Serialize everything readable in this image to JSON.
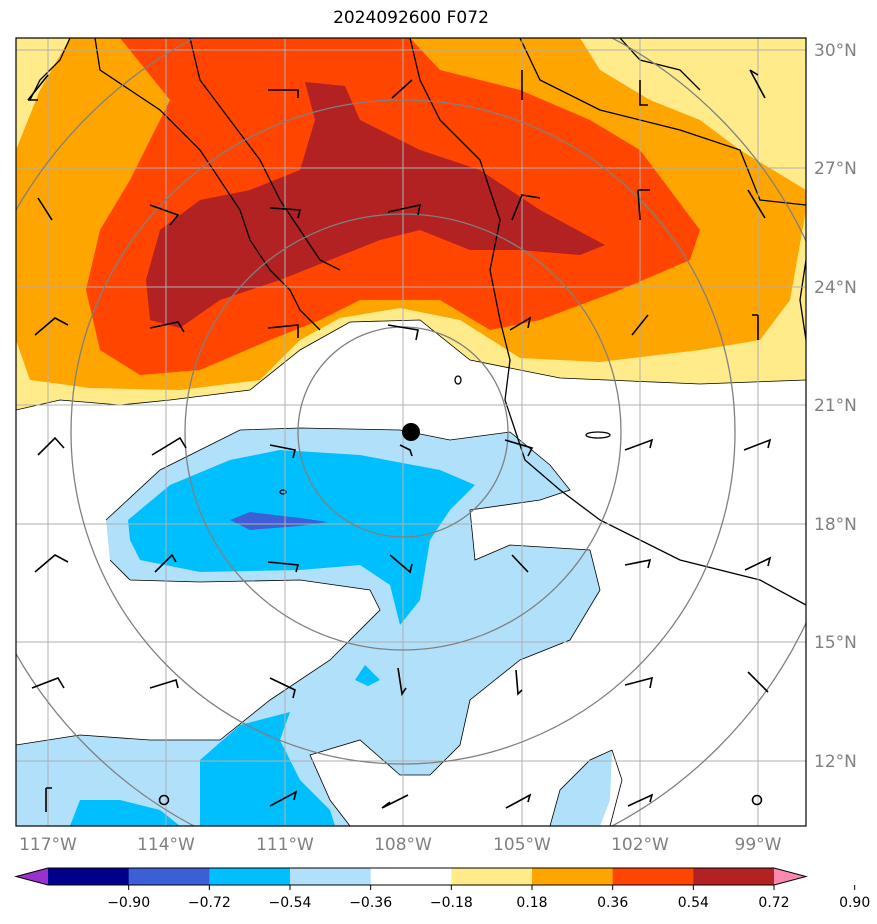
{
  "title": "2024092600 F072",
  "lat_labels": [
    "30°N",
    "27°N",
    "24°N",
    "21°N",
    "18°N",
    "15°N",
    "12°N"
  ],
  "lon_labels": [
    "117°W",
    "114°W",
    "111°W",
    "108°W",
    "105°W",
    "102°W",
    "99°W"
  ],
  "colorbar": {
    "ticks": [
      "−0.90",
      "−0.72",
      "−0.54",
      "−0.36",
      "−0.18",
      "0.18",
      "0.36",
      "0.54",
      "0.72",
      "0.90"
    ],
    "colors": [
      "#9932cc",
      "#00008b",
      "#3c5fd6",
      "#00bfff",
      "#b0e0fa",
      "#ffffff",
      "#ffeb8a",
      "#ffa500",
      "#ff4500",
      "#b22222",
      "#ff88b0"
    ]
  },
  "storm_center": {
    "lat": 20.3,
    "lon": -107.8
  },
  "range_ring_center": {
    "lat": 20.3,
    "lon": -107.8
  },
  "colors": {
    "grid": "#b0b0b0",
    "rings": "#808080",
    "coast": "#000000",
    "axis_label": "#808080"
  }
}
